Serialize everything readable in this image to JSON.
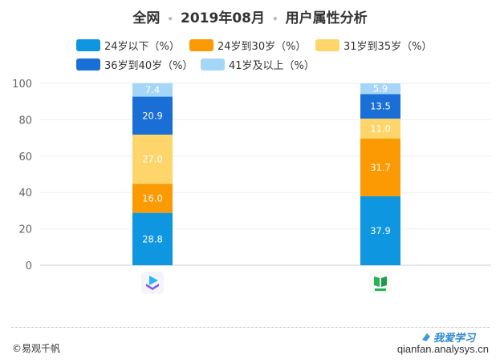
{
  "title": {
    "part1": "全网",
    "part2": "2019年08月",
    "part3": "用户属性分析",
    "separator": "•"
  },
  "footer": {
    "source": "©易观千帆",
    "url": "qianfan.analysys.cn",
    "watermark": "我爱学习"
  },
  "colors": {
    "grid": "#eeeeee",
    "axis": "#cccccc"
  },
  "chart_data": {
    "type": "bar",
    "stacked": true,
    "categories": [
      "app-icon-1",
      "app-icon-2"
    ],
    "ylim": [
      0,
      100
    ],
    "yticks": [
      0,
      20,
      40,
      60,
      80,
      100
    ],
    "legend_position": "top",
    "series": [
      {
        "name": "24岁以下（%）",
        "color": "#0f96e0",
        "values": [
          28.8,
          37.9
        ]
      },
      {
        "name": "24岁到30岁（%）",
        "color": "#fb9a03",
        "values": [
          16.0,
          31.7
        ]
      },
      {
        "name": "31岁到35岁（%）",
        "color": "#fdd56a",
        "values": [
          27.0,
          11.0
        ]
      },
      {
        "name": "36岁到40岁（%）",
        "color": "#1a6fd6",
        "values": [
          20.9,
          13.5
        ]
      },
      {
        "name": "41岁及以上（%）",
        "color": "#a5d5f7",
        "values": [
          7.4,
          5.9
        ]
      }
    ]
  }
}
